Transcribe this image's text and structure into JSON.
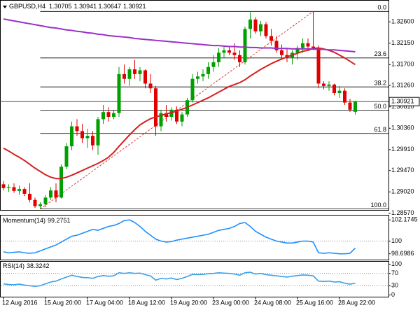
{
  "chart_data": [
    {
      "type": "candlestick",
      "title": "GBPUSD,H4",
      "header_values": [
        1.30705,
        1.30941,
        1.30647,
        1.30921
      ],
      "categories": [
        "12 Aug 2016",
        null,
        null,
        null,
        null,
        null,
        null,
        null,
        "15 Aug 20:00",
        null,
        null,
        null,
        null,
        null,
        null,
        null,
        "17 Aug 04:00",
        null,
        null,
        null,
        null,
        null,
        null,
        null,
        "18 Aug 12:00",
        null,
        null,
        null,
        null,
        null,
        null,
        null,
        "19 Aug 20:00",
        null,
        null,
        null,
        null,
        null,
        null,
        null,
        "23 Aug 00:00",
        null,
        null,
        null,
        null,
        null,
        null,
        null,
        "24 Aug 08:00",
        null,
        null,
        null,
        null,
        null,
        null,
        null,
        "25 Aug 16:00",
        null,
        null,
        null,
        null,
        null,
        null,
        null,
        "28 Aug 22:00",
        null,
        null,
        null
      ],
      "open": [
        1.2918,
        1.291,
        1.2912,
        1.2904,
        1.2908,
        1.2898,
        1.2885,
        1.2872,
        1.2876,
        1.289,
        1.2905,
        1.289,
        1.2955,
        1.2998,
        1.304,
        1.303,
        1.3015,
        1.302,
        1.3,
        1.3055,
        1.307,
        1.306,
        1.3068,
        1.315,
        1.314,
        1.316,
        1.315,
        1.3158,
        1.313,
        1.312,
        1.304,
        1.3068,
        1.306,
        1.3075,
        1.305,
        1.3065,
        1.3095,
        1.314,
        1.3145,
        1.315,
        1.3165,
        1.3175,
        1.3195,
        1.32,
        1.3195,
        1.319,
        1.3175,
        1.3245,
        1.3265,
        1.324,
        1.3255,
        1.323,
        1.322,
        1.32,
        1.319,
        1.3185,
        1.3195,
        1.3205,
        1.3215,
        1.3208,
        1.3205,
        1.313,
        1.3125,
        1.3128,
        1.311,
        1.3115,
        1.309,
        1.30705
      ],
      "high": [
        1.2925,
        1.2918,
        1.292,
        1.2915,
        1.2912,
        1.292,
        1.289,
        1.288,
        1.2895,
        1.2912,
        1.292,
        1.296,
        1.3005,
        1.305,
        1.3055,
        1.3045,
        1.3035,
        1.303,
        1.306,
        1.3085,
        1.308,
        1.3075,
        1.3165,
        1.317,
        1.3165,
        1.318,
        1.3165,
        1.316,
        1.315,
        1.3125,
        1.3075,
        1.3085,
        1.308,
        1.3082,
        1.307,
        1.31,
        1.315,
        1.3155,
        1.316,
        1.3175,
        1.319,
        1.3205,
        1.321,
        1.3208,
        1.3215,
        1.32,
        1.325,
        1.328,
        1.327,
        1.3262,
        1.326,
        1.3245,
        1.323,
        1.3212,
        1.3205,
        1.32,
        1.321,
        1.3225,
        1.3225,
        1.3282,
        1.321,
        1.3135,
        1.3135,
        1.313,
        1.3125,
        1.312,
        1.3098,
        1.30941
      ],
      "low": [
        1.2905,
        1.2902,
        1.29,
        1.2896,
        1.2893,
        1.288,
        1.2868,
        1.2866,
        1.287,
        1.2885,
        1.288,
        1.2888,
        1.295,
        1.299,
        1.302,
        1.3005,
        1.2995,
        1.299,
        1.298,
        1.3045,
        1.305,
        1.3055,
        1.306,
        1.313,
        1.3125,
        1.314,
        1.3135,
        1.312,
        1.311,
        1.302,
        1.303,
        1.305,
        1.3052,
        1.3045,
        1.304,
        1.306,
        1.309,
        1.313,
        1.3135,
        1.314,
        1.3155,
        1.3165,
        1.3185,
        1.319,
        1.318,
        1.3165,
        1.317,
        1.3225,
        1.3235,
        1.323,
        1.3225,
        1.321,
        1.3195,
        1.318,
        1.3175,
        1.317,
        1.318,
        1.3195,
        1.32,
        1.32,
        1.312,
        1.3118,
        1.3115,
        1.3105,
        1.31,
        1.3085,
        1.307,
        1.30647
      ],
      "close": [
        1.291,
        1.2912,
        1.2904,
        1.2908,
        1.2898,
        1.2885,
        1.2872,
        1.2876,
        1.289,
        1.2905,
        1.289,
        1.2955,
        1.2998,
        1.304,
        1.303,
        1.3015,
        1.302,
        1.3,
        1.3055,
        1.307,
        1.306,
        1.3068,
        1.315,
        1.314,
        1.316,
        1.315,
        1.3158,
        1.313,
        1.312,
        1.304,
        1.3068,
        1.306,
        1.3075,
        1.305,
        1.3065,
        1.3095,
        1.314,
        1.3145,
        1.315,
        1.3165,
        1.3175,
        1.3195,
        1.32,
        1.3195,
        1.319,
        1.3175,
        1.3245,
        1.3265,
        1.324,
        1.3255,
        1.323,
        1.322,
        1.32,
        1.319,
        1.3185,
        1.3195,
        1.3205,
        1.3215,
        1.3208,
        1.3205,
        1.313,
        1.3125,
        1.3128,
        1.311,
        1.3115,
        1.309,
        1.3075,
        1.30921
      ],
      "up_color": "#00a000",
      "down_color": "#e00000",
      "overlays": [
        {
          "color": "#d42020",
          "values": [
            1.2994,
            1.2988,
            1.2981,
            1.2975,
            1.2968,
            1.296,
            1.2952,
            1.2945,
            1.2938,
            1.2933,
            1.293,
            1.293,
            1.2933,
            1.2937,
            1.2942,
            1.2947,
            1.2952,
            1.2957,
            1.2962,
            1.2968,
            1.2975,
            1.2985,
            1.2998,
            1.301,
            1.3022,
            1.3033,
            1.3043,
            1.305,
            1.3056,
            1.306,
            1.3063,
            1.3066,
            1.3069,
            1.3072,
            1.3076,
            1.308,
            1.3085,
            1.309,
            1.3095,
            1.31,
            1.3106,
            1.3112,
            1.3118,
            1.3124,
            1.3128,
            1.3132,
            1.3138,
            1.3146,
            1.3153,
            1.316,
            1.3166,
            1.3172,
            1.3177,
            1.3182,
            1.3186,
            1.319,
            1.3194,
            1.3198,
            1.32,
            1.3204,
            1.3205,
            1.3203,
            1.32,
            1.3196,
            1.319,
            1.3184,
            1.3177,
            1.317
          ]
        },
        {
          "color": "#9a30c8",
          "values": [
            1.3266,
            1.3264,
            1.3262,
            1.326,
            1.3258,
            1.3256,
            1.3254,
            1.3252,
            1.325,
            1.3248,
            1.3247,
            1.3245,
            1.3243,
            1.3242,
            1.324,
            1.3239,
            1.3237,
            1.3236,
            1.3234,
            1.3233,
            1.3231,
            1.323,
            1.3229,
            1.3228,
            1.3227,
            1.3225,
            1.3224,
            1.3223,
            1.3222,
            1.3221,
            1.322,
            1.3219,
            1.3218,
            1.3217,
            1.3216,
            1.3215,
            1.3214,
            1.3213,
            1.3212,
            1.3211,
            1.321,
            1.321,
            1.3209,
            1.3208,
            1.3208,
            1.3207,
            1.3207,
            1.3206,
            1.3206,
            1.3205,
            1.3205,
            1.3205,
            1.3204,
            1.3204,
            1.3204,
            1.3203,
            1.3203,
            1.3203,
            1.3203,
            1.3203,
            1.3202,
            1.3202,
            1.3201,
            1.3201,
            1.32,
            1.3199,
            1.3198,
            1.3197
          ]
        }
      ],
      "fib_color": "#e04040",
      "fib_levels": [
        {
          "value": 0,
          "label": "0.0",
          "price": 1.3282
        },
        {
          "value": 23.6,
          "label": "23.6",
          "price": 1.3184
        },
        {
          "value": 38.2,
          "label": "38.2",
          "price": 1.3123
        },
        {
          "value": 50,
          "label": "50.0",
          "price": 1.3074
        },
        {
          "value": 61.8,
          "label": "61.8",
          "price": 1.3025
        },
        {
          "value": 100,
          "label": "100.0",
          "price": 1.2866
        }
      ],
      "current_price": 1.30921,
      "ylim": [
        1.2864,
        1.3306
      ],
      "yticks": [
        {
          "value": 1.326,
          "label": "1.32600"
        },
        {
          "value": 1.3215,
          "label": "1.32150"
        },
        {
          "value": 1.317,
          "label": "1.31700"
        },
        {
          "value": 1.3126,
          "label": "1.31260"
        },
        {
          "value": 1.3081,
          "label": "1.30810"
        },
        {
          "value": 1.3036,
          "label": "1.30360"
        },
        {
          "value": 1.2991,
          "label": "1.29910"
        },
        {
          "value": 1.2947,
          "label": "1.29470"
        },
        {
          "value": 1.2902,
          "label": "1.29020"
        },
        {
          "value": 1.2857,
          "label": "1.28570"
        }
      ]
    },
    {
      "type": "line",
      "title": "Momentum(14)",
      "current": 99.2751,
      "color": "#1e90ff",
      "values": [
        98.9,
        98.8,
        98.85,
        98.9,
        98.8,
        98.75,
        98.8,
        99.0,
        99.2,
        99.4,
        99.6,
        99.9,
        100.2,
        100.5,
        100.6,
        100.8,
        101.0,
        101.2,
        101.1,
        101.3,
        101.5,
        101.6,
        101.8,
        102.1,
        102.17,
        101.9,
        101.5,
        101.0,
        100.6,
        100.2,
        100.0,
        99.9,
        99.95,
        100.1,
        100.2,
        100.3,
        100.4,
        100.5,
        100.6,
        100.7,
        100.9,
        101.1,
        101.2,
        101.3,
        101.5,
        101.8,
        101.9,
        101.5,
        101.0,
        100.7,
        100.4,
        100.2,
        100.0,
        99.9,
        99.8,
        99.8,
        99.9,
        100.0,
        100.0,
        99.9,
        98.8,
        98.75,
        98.8,
        98.75,
        98.7,
        98.7,
        98.75,
        99.2751
      ],
      "reference_lines": [
        100
      ],
      "ylim": [
        98.03,
        102.69
      ],
      "yticks": [
        102.1745,
        100,
        98.6986
      ]
    },
    {
      "type": "line",
      "title": "RSI(14)",
      "current": 38.3242,
      "color": "#3aa0e8",
      "values": [
        36,
        34,
        33,
        35,
        32,
        30,
        28,
        30,
        36,
        42,
        45,
        52,
        58,
        64,
        60,
        57,
        56,
        54,
        60,
        63,
        61,
        62,
        72,
        70,
        72,
        70,
        71,
        66,
        62,
        48,
        54,
        52,
        55,
        50,
        54,
        60,
        67,
        66,
        67,
        69,
        70,
        72,
        71,
        70,
        68,
        64,
        72,
        74,
        68,
        70,
        66,
        64,
        62,
        60,
        58,
        61,
        63,
        65,
        64,
        62,
        45,
        44,
        45,
        42,
        43,
        38,
        35,
        38.3242
      ],
      "reference_lines": [
        70,
        30
      ],
      "ylim": [
        -8,
        108
      ],
      "yticks": [
        100,
        70,
        30,
        0
      ]
    }
  ]
}
